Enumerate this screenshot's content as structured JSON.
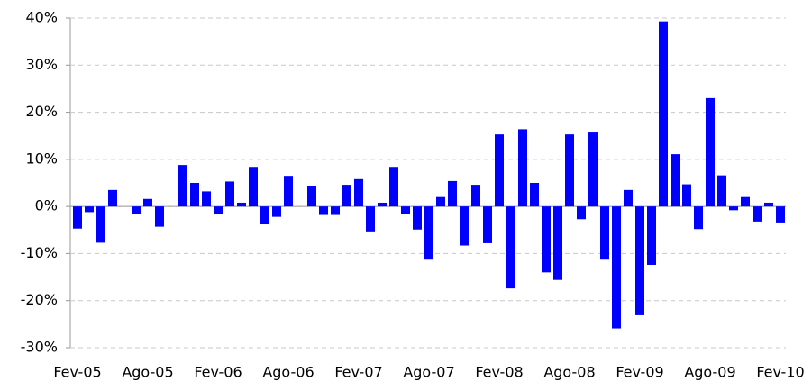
{
  "chart_data": {
    "type": "bar",
    "categories": [
      "Fev-05",
      null,
      null,
      null,
      null,
      null,
      "Ago-05",
      null,
      null,
      null,
      null,
      null,
      "Fev-06",
      null,
      null,
      null,
      null,
      null,
      "Ago-06",
      null,
      null,
      null,
      null,
      null,
      "Fev-07",
      null,
      null,
      null,
      null,
      null,
      "Ago-07",
      null,
      null,
      null,
      null,
      null,
      "Fev-08",
      null,
      null,
      null,
      null,
      null,
      "Ago-08",
      null,
      null,
      null,
      null,
      null,
      "Fev-09",
      null,
      null,
      null,
      null,
      null,
      "Ago-09",
      null,
      null,
      null,
      null,
      null,
      "Fev-10"
    ],
    "values": [
      -4.7,
      -1.2,
      -7.7,
      3.5,
      0,
      -1.6,
      1.6,
      -4.3,
      0,
      8.8,
      5.0,
      3.2,
      -1.6,
      5.3,
      0.8,
      8.4,
      -3.8,
      -2.2,
      6.5,
      0,
      4.3,
      -1.8,
      -1.8,
      4.6,
      5.8,
      -5.3,
      0.8,
      8.4,
      -1.6,
      -4.9,
      -11.3,
      2.0,
      5.4,
      -8.3,
      4.6,
      -7.8,
      15.3,
      -17.4,
      16.4,
      5.0,
      -14.0,
      -15.6,
      15.3,
      -2.7,
      15.7,
      -11.3,
      -25.9,
      3.5,
      -23.1,
      -12.4,
      39.3,
      11.1,
      4.7,
      -4.8,
      23.0,
      6.6,
      -0.8,
      2.0,
      -3.2,
      0.8,
      -3.4
    ],
    "color": "#0000ff",
    "ylim": [
      -30,
      40
    ],
    "yticks": [
      {
        "value": -30,
        "label": "-30%"
      },
      {
        "value": -20,
        "label": "-20%"
      },
      {
        "value": -10,
        "label": "-10%"
      },
      {
        "value": 0,
        "label": "0%"
      },
      {
        "value": 10,
        "label": "10%"
      },
      {
        "value": 20,
        "label": "20%"
      },
      {
        "value": 30,
        "label": "30%"
      },
      {
        "value": 40,
        "label": "40%"
      }
    ],
    "grid": true
  }
}
